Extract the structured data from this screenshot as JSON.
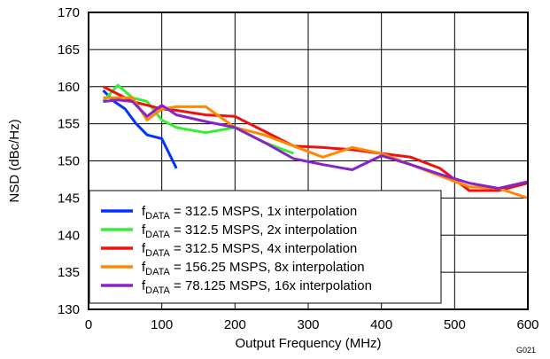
{
  "chart_data": {
    "type": "line",
    "xlabel": "Output Frequency (MHz)",
    "ylabel": "NSD (dBc/Hz)",
    "xlim": [
      0,
      600
    ],
    "ylim": [
      130,
      170
    ],
    "xticks": [
      0,
      100,
      200,
      300,
      400,
      500,
      600
    ],
    "yticks": [
      130,
      135,
      140,
      145,
      150,
      155,
      160,
      165,
      170
    ],
    "grid": true,
    "legend_position": "bottom-left",
    "figure_code": "G021",
    "series": [
      {
        "name_main": "f",
        "name_sub": "DATA",
        "name_rest": " = 312.5 MSPS, 1x interpolation",
        "color": "#0033ff",
        "x": [
          20,
          35,
          50,
          65,
          80,
          100,
          120
        ],
        "y": [
          159.5,
          158,
          157,
          155,
          153.5,
          153,
          149
        ]
      },
      {
        "name_main": "f",
        "name_sub": "DATA",
        "name_rest": " = 312.5 MSPS, 2x interpolation",
        "color": "#33ee33",
        "x": [
          20,
          40,
          60,
          80,
          100,
          120,
          160,
          200,
          240,
          280
        ],
        "y": [
          158,
          160.2,
          158.5,
          158,
          155.5,
          154.5,
          153.8,
          154.5,
          152.5,
          151
        ]
      },
      {
        "name_main": "f",
        "name_sub": "DATA",
        "name_rest": " = 312.5 MSPS, 4x interpolation",
        "color": "#ee1111",
        "x": [
          20,
          40,
          60,
          80,
          100,
          120,
          160,
          200,
          240,
          280,
          320,
          360,
          400,
          440,
          480,
          520,
          560,
          600
        ],
        "y": [
          160,
          159,
          158,
          157.5,
          157,
          156.8,
          156.2,
          156,
          154,
          152,
          151.8,
          151.5,
          151,
          150.5,
          149,
          146,
          146,
          147
        ]
      },
      {
        "name_main": "f",
        "name_sub": "DATA",
        "name_rest": " = 156.25 MSPS, 8x interpolation",
        "color": "#ff8800",
        "x": [
          20,
          40,
          60,
          80,
          100,
          120,
          160,
          200,
          240,
          280,
          320,
          360,
          400,
          440,
          480,
          520,
          560,
          600
        ],
        "y": [
          158.5,
          158.5,
          158.5,
          155.5,
          157,
          157.3,
          157.3,
          154.5,
          153.5,
          152,
          150.5,
          151.8,
          151,
          149.5,
          148,
          146.5,
          146.3,
          145
        ]
      },
      {
        "name_main": "f",
        "name_sub": "DATA",
        "name_rest": " = 78.125 MSPS, 16x interpolation",
        "color": "#8822cc",
        "x": [
          20,
          40,
          60,
          80,
          100,
          120,
          160,
          200,
          240,
          280,
          320,
          360,
          400,
          440,
          480,
          520,
          560,
          600
        ],
        "y": [
          158,
          158.2,
          158,
          156,
          157.5,
          156.2,
          155.3,
          154.5,
          152.5,
          150.3,
          149.5,
          148.8,
          150.7,
          149.5,
          148.2,
          147,
          146.3,
          147.2
        ]
      }
    ]
  }
}
